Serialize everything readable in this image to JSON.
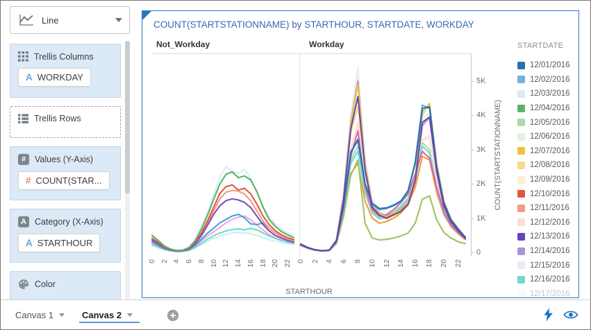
{
  "sidebar": {
    "viz_type": {
      "label": "Line"
    },
    "sections": {
      "trellis_columns": {
        "label": "Trellis Columns",
        "chip": {
          "prefix": "A",
          "label": "WORKDAY"
        }
      },
      "trellis_rows": {
        "label": "Trellis Rows"
      },
      "values": {
        "label": "Values (Y-Axis)",
        "icon_glyph": "#",
        "chip": {
          "prefix": "#",
          "label": "COUNT(STAR..."
        }
      },
      "category": {
        "label": "Category (X-Axis)",
        "icon_glyph": "A",
        "chip": {
          "prefix": "A",
          "label": "STARTHOUR"
        }
      },
      "color": {
        "label": "Color"
      }
    }
  },
  "canvas_bar": {
    "tabs": [
      {
        "label": "Canvas 1",
        "active": false
      },
      {
        "label": "Canvas 2",
        "active": true
      }
    ]
  },
  "legend": {
    "title": "STARTDATE",
    "entries": [
      {
        "label": "12/01/2016",
        "color": "#2272b4",
        "faded": false
      },
      {
        "label": "12/02/2016",
        "color": "#6fb3e0",
        "faded": false
      },
      {
        "label": "12/03/2016",
        "color": "#d8ebf8",
        "faded": false
      },
      {
        "label": "12/04/2016",
        "color": "#55b567",
        "faded": false
      },
      {
        "label": "12/05/2016",
        "color": "#a9d9ac",
        "faded": false
      },
      {
        "label": "12/06/2016",
        "color": "#e0f4e1",
        "faded": false
      },
      {
        "label": "12/07/2016",
        "color": "#f0c23c",
        "faded": false
      },
      {
        "label": "12/08/2016",
        "color": "#f6db8b",
        "faded": false
      },
      {
        "label": "12/09/2016",
        "color": "#fbf0ce",
        "faded": false
      },
      {
        "label": "12/10/2016",
        "color": "#e4573f",
        "faded": false
      },
      {
        "label": "12/11/2016",
        "color": "#f29b85",
        "faded": false
      },
      {
        "label": "12/12/2016",
        "color": "#fadfd5",
        "faded": false
      },
      {
        "label": "12/13/2016",
        "color": "#6a43b8",
        "faded": false
      },
      {
        "label": "12/14/2016",
        "color": "#ac93d6",
        "faded": false
      },
      {
        "label": "12/15/2016",
        "color": "#efe9f8",
        "faded": false
      },
      {
        "label": "12/16/2016",
        "color": "#6fd9cb",
        "faded": false
      },
      {
        "label": "12/17/2016",
        "color": "#dff7f2",
        "faded": true
      }
    ]
  },
  "chart_data": {
    "type": "line",
    "title": "COUNT(STARTSTATIONNAME) by STARTHOUR, STARTDATE, WORKDAY",
    "xlabel": "STARTHOUR",
    "ylabel": "COUNT(STARTSTATIONNAME)",
    "x": [
      0,
      1,
      2,
      3,
      4,
      5,
      6,
      7,
      8,
      9,
      10,
      11,
      12,
      13,
      14,
      15,
      16,
      17,
      18,
      19,
      20,
      21,
      22,
      23
    ],
    "x_ticks": [
      0,
      2,
      4,
      6,
      8,
      10,
      12,
      14,
      16,
      18,
      20,
      22
    ],
    "y_ticks": [
      "0",
      "1K",
      "2K",
      "3K",
      "4K",
      "5K"
    ],
    "ylim": [
      0,
      5790
    ],
    "grid": false,
    "legend_position": "right",
    "facets": [
      {
        "label": "Not_Workday",
        "series": [
          {
            "name": "12/03/2016",
            "color": "#d8ebf8",
            "values": [
              520,
              360,
              200,
              100,
              60,
              70,
              150,
              380,
              750,
              1150,
              1700,
              2200,
              2500,
              2380,
              2300,
              2420,
              2150,
              1750,
              1350,
              1050,
              830,
              680,
              560,
              470
            ]
          },
          {
            "name": "",
            "color": "#c9eff4",
            "values": [
              205,
              135,
              72,
              40,
              20,
              28,
              52,
              125,
              225,
              325,
              405,
              475,
              525,
              565,
              585,
              565,
              545,
              495,
              435,
              375,
              325,
              285,
              255,
              225
            ]
          },
          {
            "name": "",
            "color": "#f2a9d4",
            "values": [
              255,
              175,
              95,
              50,
              28,
              38,
              72,
              175,
              335,
              480,
              600,
              730,
              860,
              960,
              1030,
              1060,
              950,
              800,
              650,
              520,
              420,
              355,
              300,
              260
            ]
          },
          {
            "name": "12/16/2016",
            "color": "#6fd9cb",
            "values": [
              225,
              155,
              85,
              45,
              22,
              32,
              62,
              145,
              265,
              385,
              485,
              565,
              625,
              665,
              685,
              655,
              705,
              655,
              565,
              475,
              405,
              345,
              300,
              265
            ]
          },
          {
            "name": "12/02/2016",
            "color": "#45a2de",
            "values": [
              305,
              205,
              115,
              60,
              32,
              42,
              85,
              205,
              385,
              560,
              710,
              860,
              960,
              1060,
              1110,
              1010,
              830,
              810,
              860,
              710,
              560,
              460,
              385,
              325
            ]
          },
          {
            "name": "12/11/2016",
            "color": "#f29b85",
            "values": [
              385,
              265,
              145,
              75,
              40,
              50,
              105,
              265,
              530,
              860,
              1210,
              1560,
              1760,
              1810,
              1790,
              1700,
              1510,
              1210,
              910,
              710,
              560,
              460,
              385,
              325
            ]
          },
          {
            "name": "12/13/2016",
            "color": "#7a4fbe",
            "values": [
              355,
              245,
              130,
              70,
              38,
              48,
              98,
              245,
              490,
              790,
              1110,
              1360,
              1510,
              1560,
              1530,
              1460,
              1310,
              1060,
              810,
              630,
              490,
              410,
              345,
              295
            ]
          },
          {
            "name": "12/10/2016",
            "color": "#e4573f",
            "values": [
              410,
              285,
              155,
              80,
              45,
              55,
              115,
              290,
              570,
              920,
              1320,
              1720,
              1920,
              1970,
              1820,
              1870,
              1710,
              1410,
              1060,
              810,
              630,
              510,
              430,
              370
            ]
          },
          {
            "name": "12/04/2016",
            "color": "#55b567",
            "values": [
              490,
              340,
              185,
              95,
              55,
              65,
              140,
              340,
              680,
              1080,
              1550,
              2000,
              2280,
              2350,
              2180,
              2230,
              2120,
              1780,
              1320,
              960,
              760,
              610,
              510,
              430
            ]
          }
        ]
      },
      {
        "label": "Workday",
        "series": [
          {
            "name": "12/06/2016",
            "color": "#e0f4e1",
            "values": [
              260,
              150,
              80,
              50,
              70,
              380,
              1750,
              4000,
              5400,
              2750,
              1550,
              1250,
              1150,
              1250,
              1350,
              1550,
              2350,
              3950,
              4050,
              2500,
              1450,
              950,
              680,
              440
            ]
          },
          {
            "name": "12/15/2016",
            "color": "#efe9f8",
            "values": [
              240,
              140,
              75,
              48,
              65,
              350,
              1600,
              3700,
              5100,
              2600,
              1450,
              1180,
              1080,
              1180,
              1280,
              1480,
              2250,
              3750,
              3850,
              2380,
              1380,
              900,
              650,
              420
            ]
          },
          {
            "name": "12/09/2016",
            "color": "#fbf0ce",
            "values": [
              210,
              124,
              65,
              41,
              55,
              295,
              1320,
              2900,
              3600,
              1880,
              1160,
              980,
              1000,
              1100,
              1230,
              1450,
              1980,
              3250,
              3350,
              2050,
              1250,
              820,
              590,
              395
            ]
          },
          {
            "name": "12/12/2016",
            "color": "#fadfd5",
            "values": [
              205,
              122,
              64,
              40,
              54,
              290,
              1350,
              3000,
              3800,
              1950,
              1200,
              1000,
              1020,
              1120,
              1250,
              1480,
              2000,
              3300,
              3400,
              2100,
              1280,
              840,
              600,
              400
            ]
          },
          {
            "name": "12/05/2016",
            "color": "#a9d9ac",
            "values": [
              215,
              127,
              67,
              42,
              57,
              305,
              1280,
              2700,
              3100,
              1800,
              1180,
              1010,
              1050,
              1180,
              1350,
              1580,
              2150,
              3200,
              3000,
              1880,
              1180,
              790,
              570,
              385
            ]
          },
          {
            "name": "12/14/2016",
            "color": "#ac93d6",
            "values": [
              250,
              145,
              78,
              50,
              68,
              360,
              1650,
              3800,
              5000,
              2550,
              1400,
              1150,
              1060,
              1160,
              1260,
              1460,
              2200,
              3700,
              3950,
              2450,
              1400,
              920,
              660,
              430
            ]
          },
          {
            "name": "12/08/2016",
            "color": "#f6db8b",
            "values": [
              230,
              135,
              72,
              45,
              62,
              340,
              1500,
              3500,
              4250,
              2300,
              1280,
              1050,
              970,
              1070,
              1170,
              1370,
              2050,
              4000,
              4300,
              2550,
              1480,
              960,
              690,
              445
            ]
          },
          {
            "name": "",
            "color": "#f09a38",
            "values": [
              200,
              120,
              62,
              40,
              52,
              280,
              1150,
              2300,
              2600,
              1500,
              1000,
              850,
              900,
              1000,
              1150,
              1400,
              1900,
              2800,
              2700,
              1750,
              1100,
              750,
              540,
              370
            ]
          },
          {
            "name": "",
            "color": "#9ec45c",
            "values": [
              205,
              122,
              64,
              40,
              52,
              260,
              1050,
              2250,
              2700,
              850,
              420,
              360,
              380,
              420,
              480,
              560,
              850,
              1550,
              1650,
              950,
              580,
              420,
              310,
              255
            ]
          },
          {
            "name": "12/16/2016",
            "color": "#6fd9cb",
            "values": [
              210,
              125,
              66,
              42,
              56,
              300,
              1250,
              2600,
              2950,
              1750,
              1150,
              980,
              1020,
              1150,
              1320,
              1550,
              2100,
              3100,
              2900,
              1850,
              1150,
              780,
              560,
              380
            ]
          },
          {
            "name": "",
            "color": "#db64a7",
            "values": [
              215,
              128,
              68,
              43,
              58,
              310,
              1300,
              2800,
              3550,
              1900,
              1250,
              1060,
              1100,
              1250,
              1450,
              1700,
              2300,
              2950,
              2750,
              1900,
              1200,
              800,
              580,
              390
            ]
          },
          {
            "name": "12/07/2016",
            "color": "#f0c23c",
            "values": [
              245,
              142,
              76,
              48,
              66,
              355,
              1600,
              3750,
              4900,
              2500,
              1380,
              1130,
              1040,
              1140,
              1240,
              1440,
              2180,
              4100,
              4350,
              2600,
              1500,
              980,
              700,
              450
            ]
          },
          {
            "name": "12/02/2016",
            "color": "#5fa8dc",
            "values": [
              225,
              132,
              71,
              44,
              61,
              325,
              1380,
              2950,
              3250,
              1980,
              1400,
              1250,
              1280,
              1360,
              1480,
              1780,
              2650,
              4300,
              4200,
              2480,
              1430,
              940,
              670,
              435
            ]
          },
          {
            "name": "12/01/2016",
            "color": "#2272b4",
            "values": [
              220,
              130,
              70,
              44,
              60,
              320,
              1350,
              2900,
              3300,
              2000,
              1430,
              1280,
              1300,
              1380,
              1500,
              1800,
              2600,
              4200,
              4250,
              2500,
              1450,
              950,
              680,
              440
            ]
          },
          {
            "name": "12/13/2016",
            "color": "#6a43b8",
            "values": [
              235,
              138,
              74,
              46,
              64,
              345,
              1550,
              3600,
              4550,
              2400,
              1320,
              1080,
              1000,
              1100,
              1200,
              1400,
              2100,
              3800,
              3950,
              2350,
              1350,
              880,
              630,
              410
            ]
          }
        ]
      }
    ]
  }
}
